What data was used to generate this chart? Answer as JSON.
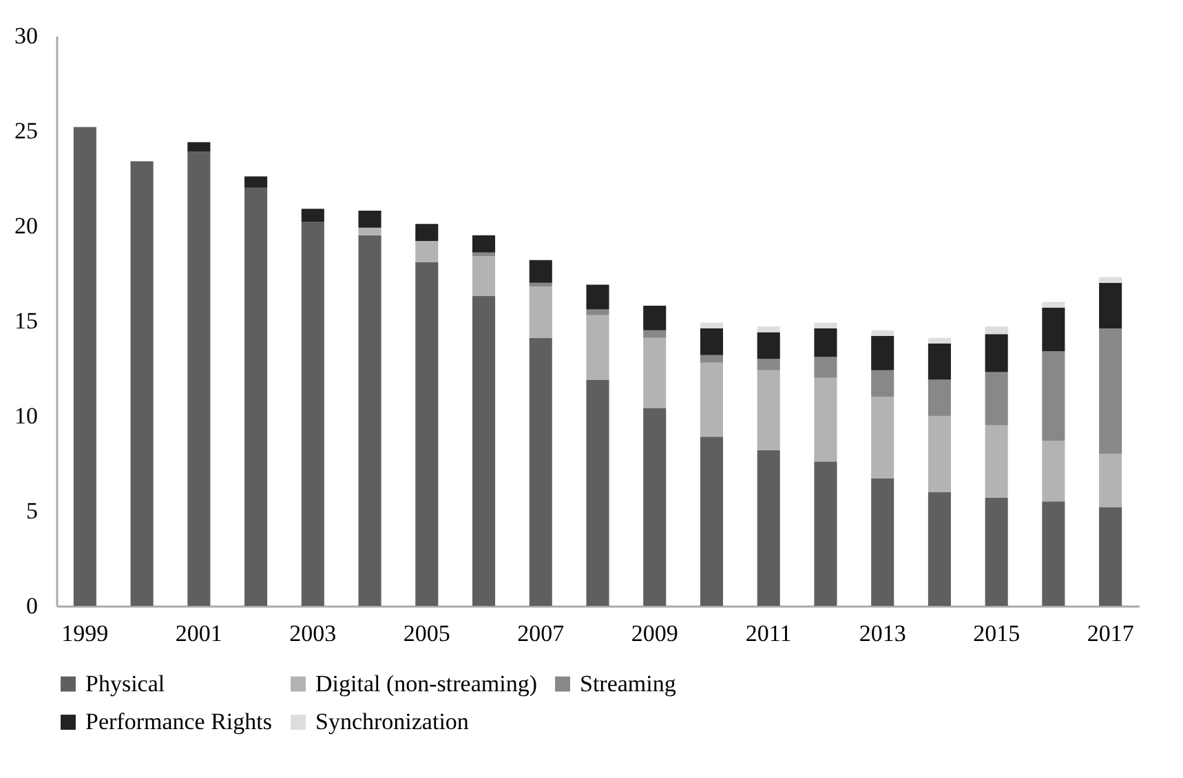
{
  "chart_data": {
    "type": "bar",
    "stacked": true,
    "legend": "bottom",
    "grid": false,
    "categories": [
      "1999",
      null,
      "2001",
      null,
      "2003",
      null,
      "2005",
      null,
      "2007",
      null,
      "2009",
      null,
      "2011",
      null,
      "2013",
      null,
      "2015",
      null,
      "2017"
    ],
    "ylim": [
      0,
      30
    ],
    "yticks": [
      0,
      5,
      10,
      15,
      20,
      25,
      30
    ],
    "series": [
      {
        "name": "Physical",
        "color": "#5f5f5f",
        "values": [
          25.2,
          23.4,
          23.9,
          22.0,
          20.2,
          19.5,
          18.1,
          16.3,
          14.1,
          11.9,
          10.4,
          8.9,
          8.2,
          7.6,
          6.7,
          6.0,
          5.7,
          5.5,
          5.2
        ]
      },
      {
        "name": "Digital (non-streaming)",
        "color": "#b3b3b3",
        "values": [
          0,
          0,
          0,
          0,
          0,
          0.4,
          1.1,
          2.1,
          2.7,
          3.4,
          3.7,
          3.9,
          4.2,
          4.4,
          4.3,
          4.0,
          3.8,
          3.2,
          2.8
        ]
      },
      {
        "name": "Streaming",
        "color": "#888888",
        "values": [
          0,
          0,
          0,
          0,
          0,
          0,
          0,
          0.2,
          0.2,
          0.3,
          0.4,
          0.4,
          0.6,
          1.1,
          1.4,
          1.9,
          2.8,
          4.7,
          6.6
        ]
      },
      {
        "name": "Performance Rights",
        "color": "#222222",
        "values": [
          0,
          0,
          0.5,
          0.6,
          0.7,
          0.9,
          0.9,
          0.9,
          1.2,
          1.3,
          1.3,
          1.4,
          1.4,
          1.5,
          1.8,
          1.9,
          2.0,
          2.3,
          2.4
        ]
      },
      {
        "name": "Synchronization",
        "color": "#dddddd",
        "values": [
          0,
          0,
          0,
          0,
          0,
          0,
          0,
          0,
          0,
          0,
          0,
          0.3,
          0.3,
          0.3,
          0.3,
          0.3,
          0.4,
          0.3,
          0.3
        ]
      }
    ]
  }
}
